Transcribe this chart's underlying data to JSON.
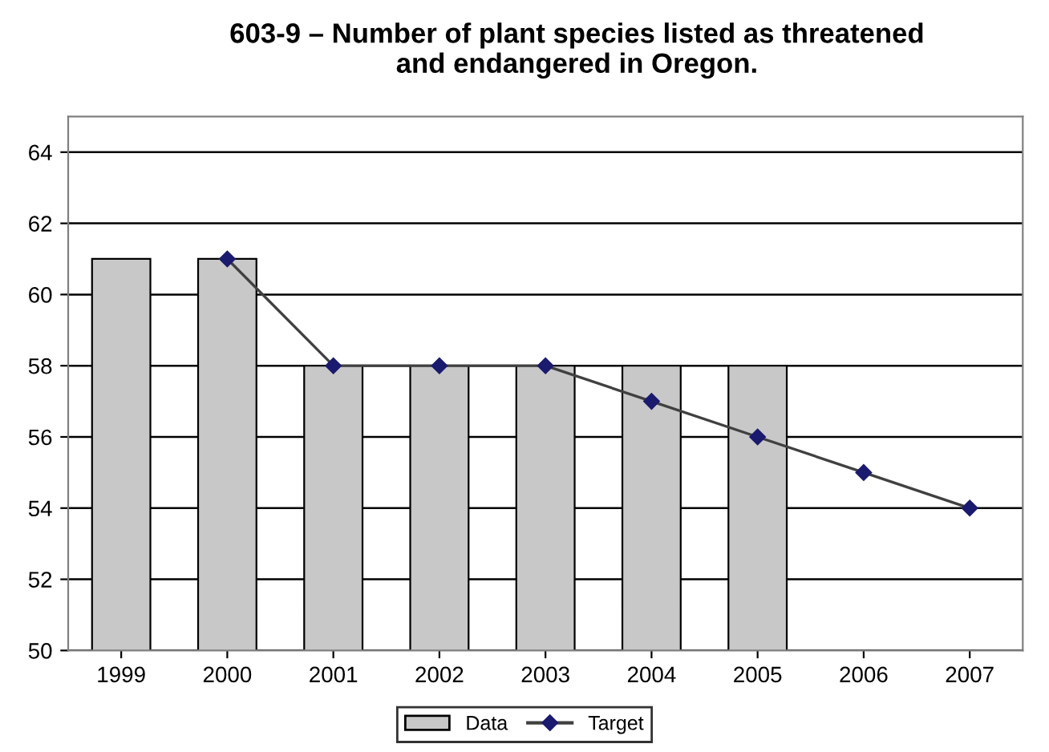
{
  "chart_data": {
    "type": "bar",
    "title": "603-9 – Number of plant species listed as threatened\nand endangered in Oregon.",
    "categories": [
      "1999",
      "2000",
      "2001",
      "2002",
      "2003",
      "2004",
      "2005",
      "2006",
      "2007"
    ],
    "series": [
      {
        "name": "Data",
        "color": "#c8c8c8",
        "values": [
          61,
          61,
          58,
          58,
          58,
          58,
          58,
          null,
          null
        ]
      },
      {
        "name": "Target",
        "type": "line",
        "color": "#404040",
        "marker": "diamond",
        "values": [
          null,
          61,
          58,
          58,
          58,
          57,
          56,
          55,
          54
        ]
      }
    ],
    "ylim": [
      50,
      65
    ],
    "yticks": [
      50,
      52,
      54,
      56,
      58,
      60,
      62,
      64
    ],
    "grid": "y",
    "legend": "bottom"
  }
}
